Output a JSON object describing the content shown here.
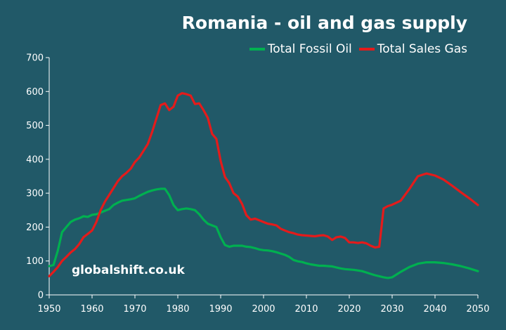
{
  "chart_data": {
    "type": "line",
    "title": "Romania - oil and gas supply",
    "xlabel": "",
    "ylabel": "",
    "xlim": [
      1950,
      2050
    ],
    "ylim": [
      0,
      700
    ],
    "xticks": [
      1950,
      1960,
      1970,
      1980,
      1990,
      2000,
      2010,
      2020,
      2030,
      2040,
      2050
    ],
    "yticks": [
      0,
      100,
      200,
      300,
      400,
      500,
      600,
      700
    ],
    "grid": false,
    "legend": "top-right",
    "annotation": "globalshift.co.uk",
    "series": [
      {
        "name": "Total Fossil Oil",
        "color": "#00b050",
        "x": [
          1950,
          1951,
          1952,
          1953,
          1954,
          1955,
          1956,
          1957,
          1958,
          1959,
          1960,
          1961,
          1962,
          1963,
          1964,
          1965,
          1966,
          1967,
          1968,
          1969,
          1970,
          1971,
          1972,
          1973,
          1974,
          1975,
          1976,
          1977,
          1978,
          1979,
          1980,
          1981,
          1982,
          1983,
          1984,
          1985,
          1986,
          1987,
          1988,
          1989,
          1990,
          1991,
          1992,
          1993,
          1994,
          1995,
          1996,
          1997,
          1998,
          1999,
          2000,
          2001,
          2002,
          2003,
          2004,
          2005,
          2006,
          2007,
          2008,
          2009,
          2010,
          2011,
          2012,
          2013,
          2014,
          2015,
          2016,
          2017,
          2018,
          2019,
          2020,
          2021,
          2022,
          2023,
          2024,
          2025,
          2026,
          2027,
          2028,
          2029,
          2030,
          2032,
          2034,
          2036,
          2038,
          2040,
          2042,
          2044,
          2046,
          2048,
          2050
        ],
        "values": [
          85,
          88,
          130,
          185,
          200,
          215,
          222,
          226,
          232,
          230,
          236,
          238,
          243,
          248,
          253,
          265,
          272,
          278,
          280,
          282,
          285,
          292,
          298,
          304,
          308,
          311,
          313,
          313,
          294,
          265,
          250,
          253,
          255,
          253,
          250,
          238,
          222,
          210,
          205,
          200,
          170,
          147,
          142,
          145,
          145,
          145,
          142,
          141,
          138,
          134,
          132,
          131,
          129,
          126,
          122,
          118,
          112,
          103,
          99,
          97,
          93,
          90,
          88,
          86,
          86,
          85,
          84,
          81,
          78,
          76,
          75,
          74,
          72,
          70,
          66,
          62,
          58,
          55,
          52,
          50,
          52,
          68,
          82,
          92,
          96,
          96,
          94,
          90,
          85,
          78,
          70
        ]
      },
      {
        "name": "Total Sales Gas",
        "color": "#e41b1b",
        "x": [
          1950,
          1951,
          1952,
          1953,
          1954,
          1955,
          1956,
          1957,
          1958,
          1959,
          1960,
          1961,
          1962,
          1963,
          1964,
          1965,
          1966,
          1967,
          1968,
          1969,
          1970,
          1971,
          1972,
          1973,
          1974,
          1975,
          1976,
          1977,
          1978,
          1979,
          1980,
          1981,
          1982,
          1983,
          1984,
          1985,
          1986,
          1987,
          1988,
          1989,
          1990,
          1991,
          1992,
          1993,
          1994,
          1995,
          1996,
          1997,
          1998,
          1999,
          2000,
          2001,
          2002,
          2003,
          2004,
          2005,
          2006,
          2007,
          2008,
          2009,
          2010,
          2011,
          2012,
          2013,
          2014,
          2015,
          2016,
          2017,
          2018,
          2019,
          2020,
          2021,
          2022,
          2023,
          2024,
          2025,
          2026,
          2027,
          2028,
          2029,
          2030,
          2032,
          2034,
          2036,
          2038,
          2040,
          2042,
          2044,
          2046,
          2048,
          2050
        ],
        "values": [
          55,
          68,
          82,
          100,
          112,
          125,
          135,
          150,
          170,
          180,
          190,
          215,
          250,
          275,
          295,
          315,
          335,
          350,
          360,
          372,
          392,
          405,
          425,
          445,
          480,
          520,
          560,
          565,
          545,
          555,
          588,
          595,
          592,
          588,
          563,
          565,
          545,
          522,
          475,
          460,
          395,
          348,
          330,
          300,
          290,
          268,
          235,
          222,
          225,
          220,
          215,
          210,
          208,
          205,
          195,
          190,
          185,
          182,
          178,
          176,
          175,
          174,
          173,
          175,
          176,
          172,
          162,
          170,
          172,
          168,
          155,
          155,
          153,
          155,
          152,
          145,
          140,
          142,
          255,
          262,
          266,
          278,
          312,
          350,
          358,
          352,
          340,
          322,
          303,
          285,
          265
        ]
      }
    ]
  }
}
